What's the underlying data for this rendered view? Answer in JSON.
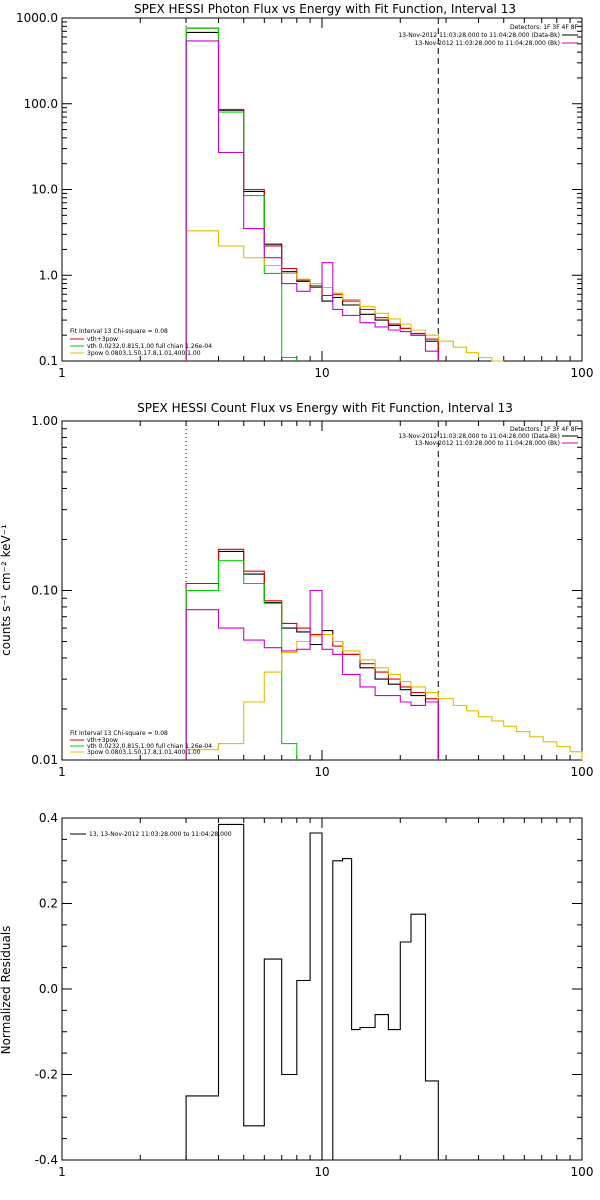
{
  "colors": {
    "total": "#000000",
    "vth_3pow": "#e00000",
    "vth": "#00d000",
    "three_pow": "#e0c000",
    "bkg": "#d000d0"
  },
  "chart_data": [
    {
      "type": "line",
      "title": "SPEX HESSI Photon Flux vs Energy with Fit Function, Interval 13",
      "xlabel": "",
      "ylabel": "",
      "xscale": "log",
      "yscale": "log",
      "xlim": [
        1,
        100
      ],
      "ylim": [
        0.1,
        1000
      ],
      "xticks": [
        "1",
        "10",
        "100"
      ],
      "yticks": [
        "0.1",
        "1.0",
        "10.0",
        "100.0",
        "1000.0"
      ],
      "vlines": [
        {
          "x": 3.0,
          "style": "dotted"
        },
        {
          "x": 28,
          "style": "dashed"
        }
      ],
      "legend_topright": [
        "Detectors: 1F 3F 4F 8F",
        "13-Nov-2012 11:03:28.000 to 11:04:28.000 (Data-Bk)",
        "13-Nov-2012 11:03:28.000 to 11:04:28.000 (Bk)"
      ],
      "legend_bottomleft": [
        "Fit Interval 13   Chi-square = 0.08",
        "vth+3pow",
        "vth 0.0232,0.815,1.00  full chian 1.26e-04",
        "3pow 0.0803,1.50,17.8,1.01,400,1.00"
      ],
      "edges": [
        3.0,
        4.0,
        5.0,
        6.0,
        7.0,
        8.0,
        9.0,
        10.0,
        11.0,
        12.0,
        14.0,
        16.0,
        18.0,
        20.0,
        22.0,
        25.0,
        28.0,
        32.0,
        36.0,
        40.0,
        45.0,
        50.0
      ],
      "series": [
        {
          "name": "",
          "color": "#000000",
          "values": [
            680,
            84,
            9.5,
            2.3,
            1.1,
            0.85,
            0.75,
            0.5,
            0.55,
            0.45,
            0.35,
            0.3,
            0.26,
            0.24,
            0.2,
            0.17
          ]
        },
        {
          "name": "vth+3pow",
          "color": "#e00000",
          "values": [
            760,
            86,
            10,
            2.2,
            1.2,
            0.88,
            0.72,
            0.58,
            0.6,
            0.5,
            0.4,
            0.32,
            0.27,
            0.24,
            0.21,
            0.18
          ]
        },
        {
          "name": "vth",
          "color": "#00d000",
          "values": [
            760,
            80,
            8.5,
            1.05,
            0.11
          ]
        },
        {
          "name": "3pow",
          "color": "#e0c000",
          "values": [
            3.3,
            2.2,
            1.6,
            1.3,
            1.05,
            0.9,
            0.8,
            0.72,
            0.62,
            0.52,
            0.43,
            0.36,
            0.31,
            0.27,
            0.23,
            0.2,
            0.17,
            0.145,
            0.125,
            0.11,
            0.1
          ]
        },
        {
          "name": "",
          "color": "#d000d0",
          "values": [
            540,
            27,
            3.5,
            1.6,
            0.8,
            0.65,
            0.72,
            1.4,
            0.4,
            0.34,
            0.28,
            0.25,
            0.23,
            0.22,
            0.2,
            0.13
          ]
        }
      ]
    },
    {
      "type": "line",
      "title": "SPEX HESSI Count Flux vs Energy with Fit Function, Interval 13",
      "xlabel": "",
      "ylabel": "counts s⁻¹ cm⁻² keV⁻¹",
      "xscale": "log",
      "yscale": "log",
      "xlim": [
        1,
        100
      ],
      "ylim": [
        0.01,
        1.0
      ],
      "xticks": [
        "1",
        "10",
        "100"
      ],
      "yticks": [
        "0.01",
        "0.10",
        "1.00"
      ],
      "vlines": [
        {
          "x": 3.0,
          "style": "dotted"
        },
        {
          "x": 28,
          "style": "dashed"
        }
      ],
      "legend_topright": [
        "Detectors: 1F 3F 4F 8F",
        "13-Nov-2012 11:03:28.000 to 11:04:28.000 (Data-Bk)",
        "13-Nov-2012 11:03:28.000 to 11:04:28.000 (Bk)"
      ],
      "legend_bottomleft": [
        "Fit Interval 13   Chi-square = 0.08",
        "vth+3pow",
        "vth 0.0232,0.815,1.00  full chian 1.26e-04",
        "3pow 0.0803,1.50,17.8,1.01,400,1.00"
      ],
      "edges": [
        3.0,
        4.0,
        5.0,
        6.0,
        7.0,
        8.0,
        9.0,
        10.0,
        11.0,
        12.0,
        14.0,
        16.0,
        18.0,
        20.0,
        22.0,
        25.0,
        28.0,
        32.0,
        36.0,
        40.0,
        45.0,
        50.0,
        56.0,
        63.0,
        71.0,
        80.0,
        90.0,
        100.0
      ],
      "series": [
        {
          "name": "",
          "color": "#000000",
          "values": [
            0.1,
            0.17,
            0.125,
            0.085,
            0.06,
            0.057,
            0.048,
            0.058,
            0.05,
            0.042,
            0.035,
            0.03,
            0.028,
            0.026,
            0.024,
            0.022
          ]
        },
        {
          "name": "vth+3pow",
          "color": "#e00000",
          "values": [
            0.11,
            0.175,
            0.13,
            0.087,
            0.064,
            0.06,
            0.055,
            0.055,
            0.047,
            0.042,
            0.037,
            0.033,
            0.03,
            0.027,
            0.025,
            0.023
          ]
        },
        {
          "name": "vth",
          "color": "#00d000",
          "values": [
            0.1,
            0.15,
            0.11,
            0.084,
            0.0125
          ]
        },
        {
          "name": "3pow",
          "color": "#e0c000",
          "values": [
            0.0115,
            0.0125,
            0.022,
            0.033,
            0.043,
            0.05,
            0.054,
            0.055,
            0.05,
            0.044,
            0.039,
            0.035,
            0.032,
            0.029,
            0.027,
            0.025,
            0.023,
            0.021,
            0.0195,
            0.018,
            0.017,
            0.0158,
            0.0147,
            0.0137,
            0.0128,
            0.012,
            0.0112
          ]
        },
        {
          "name": "",
          "color": "#d000d0",
          "values": [
            0.077,
            0.06,
            0.051,
            0.046,
            0.044,
            0.045,
            0.1,
            0.045,
            0.042,
            0.032,
            0.027,
            0.024,
            0.024,
            0.022,
            0.021,
            0.022
          ]
        }
      ]
    },
    {
      "type": "line",
      "title": "",
      "xlabel": "",
      "ylabel": "Normalized Residuals",
      "xscale": "log",
      "yscale": "linear",
      "xlim": [
        1,
        100
      ],
      "ylim": [
        -0.4,
        0.4
      ],
      "xticks": [
        "1",
        "10",
        "100"
      ],
      "yticks": [
        "-0.4",
        "-0.2",
        "0.0",
        "0.2",
        "0.4"
      ],
      "legend_topleft": [
        "13, 13-Nov-2012 11:03:28.000 to 11:04:28.000"
      ],
      "edges": [
        3.0,
        4.0,
        5.0,
        6.0,
        7.0,
        8.0,
        9.0,
        10.0,
        11.0,
        12.0,
        13.0,
        14.0,
        16.0,
        18.0,
        20.0,
        22.0,
        25.0,
        28.0
      ],
      "series": [
        {
          "name": "",
          "color": "#000000",
          "values": [
            -0.25,
            0.385,
            -0.32,
            0.07,
            -0.2,
            0.02,
            0.365,
            -0.43,
            0.3,
            0.305,
            -0.095,
            -0.09,
            -0.06,
            -0.095,
            0.11,
            0.175,
            -0.215
          ]
        }
      ]
    }
  ]
}
